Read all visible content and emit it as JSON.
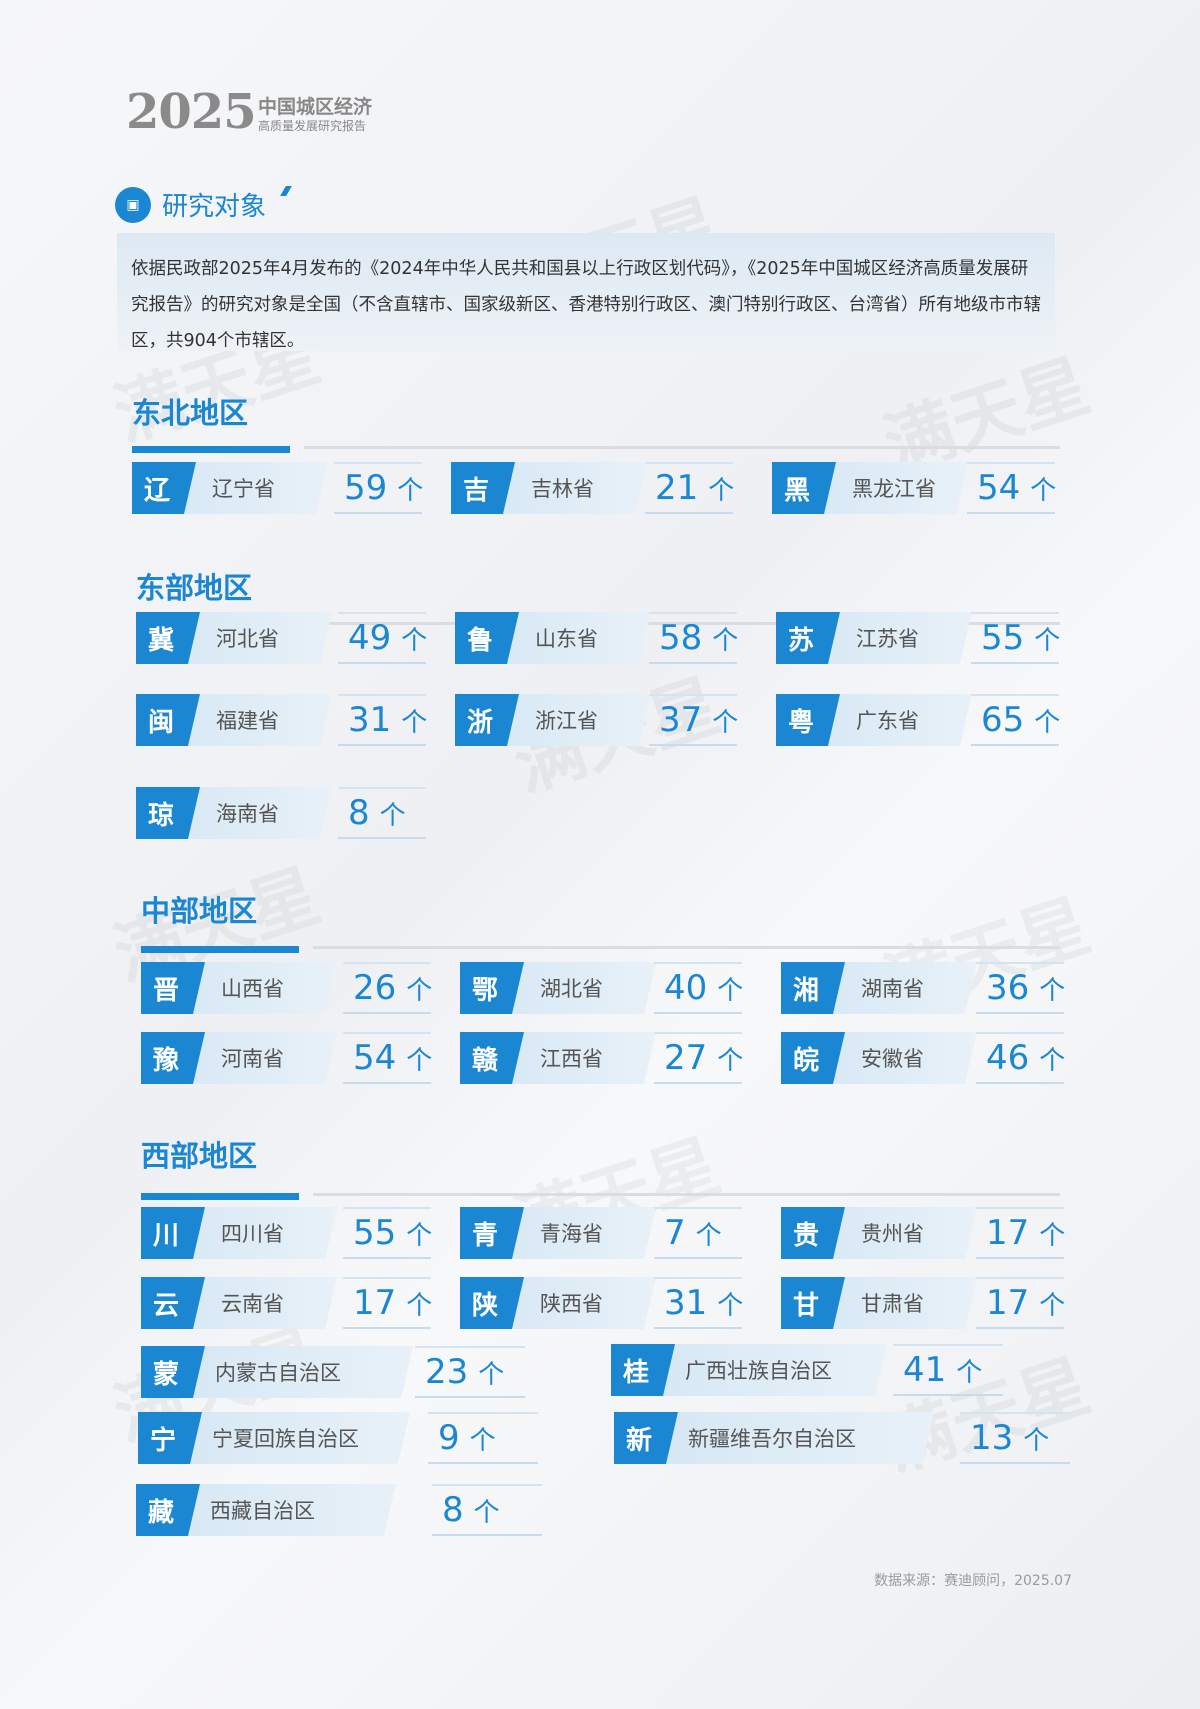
{
  "header": {
    "year": "2025",
    "title": "中国城区经济",
    "subtitle": "高质量发展研究报告"
  },
  "section": {
    "icon": "document-icon",
    "title": "研究对象"
  },
  "intro": "依据民政部2025年4月发布的《2024年中华人民共和国县以上行政区划代码》，《2025年中国城区经济高质量发展研究报告》的研究对象是全国（不含直辖市、国家级新区、香港特别行政区、澳门特别行政区、台湾省）所有地级市市辖区，共904个市辖区。",
  "unit": "个",
  "accent_color": "#1b86d1",
  "regions": [
    {
      "title": "东北地区",
      "items": [
        {
          "char": "辽",
          "name": "辽宁省",
          "count": "59"
        },
        {
          "char": "吉",
          "name": "吉林省",
          "count": "21"
        },
        {
          "char": "黑",
          "name": "黑龙江省",
          "count": "54"
        }
      ]
    },
    {
      "title": "东部地区",
      "items": [
        {
          "char": "冀",
          "name": "河北省",
          "count": "49"
        },
        {
          "char": "鲁",
          "name": "山东省",
          "count": "58"
        },
        {
          "char": "苏",
          "name": "江苏省",
          "count": "55"
        },
        {
          "char": "闽",
          "name": "福建省",
          "count": "31"
        },
        {
          "char": "浙",
          "name": "浙江省",
          "count": "37"
        },
        {
          "char": "粤",
          "name": "广东省",
          "count": "65"
        },
        {
          "char": "琼",
          "name": "海南省",
          "count": "8"
        }
      ]
    },
    {
      "title": "中部地区",
      "items": [
        {
          "char": "晋",
          "name": "山西省",
          "count": "26"
        },
        {
          "char": "鄂",
          "name": "湖北省",
          "count": "40"
        },
        {
          "char": "湘",
          "name": "湖南省",
          "count": "36"
        },
        {
          "char": "豫",
          "name": "河南省",
          "count": "54"
        },
        {
          "char": "赣",
          "name": "江西省",
          "count": "27"
        },
        {
          "char": "皖",
          "name": "安徽省",
          "count": "46"
        }
      ]
    },
    {
      "title": "西部地区",
      "items": [
        {
          "char": "川",
          "name": "四川省",
          "count": "55"
        },
        {
          "char": "青",
          "name": "青海省",
          "count": "7"
        },
        {
          "char": "贵",
          "name": "贵州省",
          "count": "17"
        },
        {
          "char": "云",
          "name": "云南省",
          "count": "17"
        },
        {
          "char": "陕",
          "name": "陕西省",
          "count": "31"
        },
        {
          "char": "甘",
          "name": "甘肃省",
          "count": "17"
        },
        {
          "char": "蒙",
          "name": "内蒙古自治区",
          "count": "23"
        },
        {
          "char": "桂",
          "name": "广西壮族自治区",
          "count": "41"
        },
        {
          "char": "宁",
          "name": "宁夏回族自治区",
          "count": "9"
        },
        {
          "char": "新",
          "name": "新疆维吾尔自治区",
          "count": "13"
        },
        {
          "char": "藏",
          "name": "西藏自治区",
          "count": "8"
        }
      ]
    }
  ],
  "source": "数据来源：赛迪顾问，2025.07",
  "watermark": "满天星"
}
